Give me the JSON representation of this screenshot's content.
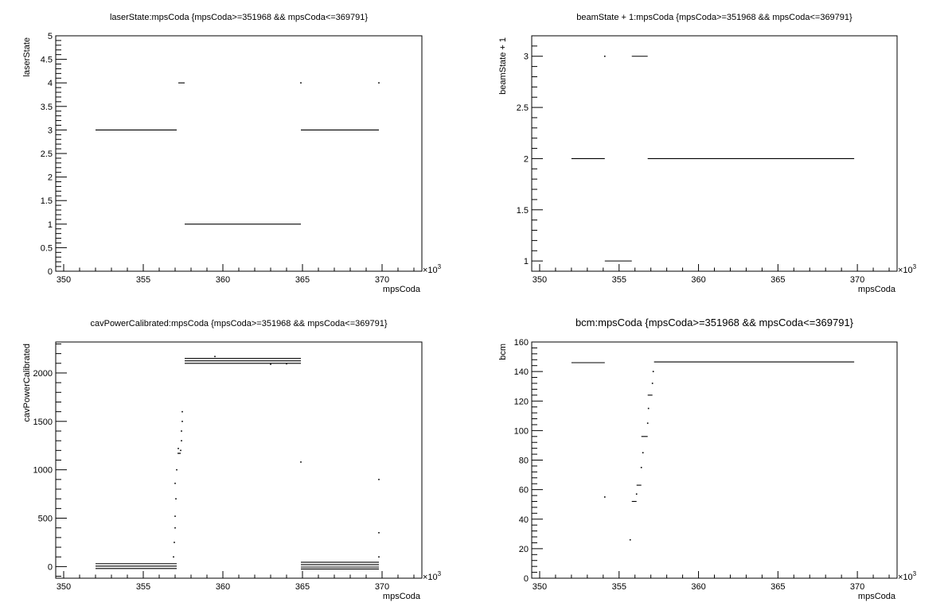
{
  "chart_data": [
    {
      "type": "scatter",
      "title": "laserState:mpsCoda {mpsCoda>=351968 && mpsCoda<=369791}",
      "xlabel": "mpsCoda",
      "ylabel": "laserState",
      "x_exponent": "×10",
      "x_exponent_power": "3",
      "xlim": [
        349.5,
        372.5
      ],
      "ylim": [
        0,
        5
      ],
      "xticks": [
        350,
        355,
        360,
        365,
        370
      ],
      "xtick_labels": [
        "350",
        "355",
        "360",
        "365",
        "370"
      ],
      "yticks": [
        0,
        0.5,
        1,
        1.5,
        2,
        2.5,
        3,
        3.5,
        4,
        4.5,
        5
      ],
      "ytick_labels": [
        "0",
        "0.5",
        "1",
        "1.5",
        "2",
        "2.5",
        "3",
        "3.5",
        "4",
        "4.5",
        "5"
      ],
      "grid": false,
      "segments": [
        {
          "x0": 352.0,
          "x1": 357.1,
          "y": 3
        },
        {
          "x0": 357.2,
          "x1": 357.6,
          "y": 4
        },
        {
          "x0": 357.6,
          "x1": 364.9,
          "y": 1
        },
        {
          "x0": 364.9,
          "x1": 369.8,
          "y": 3
        }
      ],
      "points": [
        {
          "x": 364.9,
          "y": 4
        },
        {
          "x": 369.8,
          "y": 4
        }
      ]
    },
    {
      "type": "scatter",
      "title": "beamState + 1:mpsCoda {mpsCoda>=351968 && mpsCoda<=369791}",
      "xlabel": "mpsCoda",
      "ylabel": "beamState + 1",
      "x_exponent": "×10",
      "x_exponent_power": "3",
      "xlim": [
        349.5,
        372.5
      ],
      "ylim": [
        0.9,
        3.2
      ],
      "xticks": [
        350,
        355,
        360,
        365,
        370
      ],
      "xtick_labels": [
        "350",
        "355",
        "360",
        "365",
        "370"
      ],
      "yticks": [
        1,
        1.5,
        2,
        2.5,
        3
      ],
      "ytick_labels": [
        "1",
        "1.5",
        "2",
        "2.5",
        "3"
      ],
      "grid": false,
      "segments": [
        {
          "x0": 352.0,
          "x1": 354.1,
          "y": 2
        },
        {
          "x0": 354.1,
          "x1": 355.8,
          "y": 1
        },
        {
          "x0": 355.8,
          "x1": 356.8,
          "y": 3
        },
        {
          "x0": 356.8,
          "x1": 369.8,
          "y": 2
        }
      ],
      "points": [
        {
          "x": 354.1,
          "y": 3
        }
      ]
    },
    {
      "type": "scatter",
      "title": "cavPowerCalibrated:mpsCoda {mpsCoda>=351968 && mpsCoda<=369791}",
      "xlabel": "mpsCoda",
      "ylabel": "cavPowerCalibrated",
      "x_exponent": "×10",
      "x_exponent_power": "3",
      "xlim": [
        349.5,
        372.5
      ],
      "ylim": [
        -120,
        2320
      ],
      "xticks": [
        350,
        355,
        360,
        365,
        370
      ],
      "xtick_labels": [
        "350",
        "355",
        "360",
        "365",
        "370"
      ],
      "yticks": [
        0,
        500,
        1000,
        1500,
        2000
      ],
      "ytick_labels": [
        "0",
        "500",
        "1000",
        "1500",
        "2000"
      ],
      "grid": false,
      "segments": [
        {
          "x0": 352.0,
          "x1": 357.1,
          "y": 30
        },
        {
          "x0": 352.0,
          "x1": 357.1,
          "y": 5
        },
        {
          "x0": 352.0,
          "x1": 357.1,
          "y": -20
        },
        {
          "x0": 357.6,
          "x1": 364.9,
          "y": 2150
        },
        {
          "x0": 357.6,
          "x1": 364.9,
          "y": 2125
        },
        {
          "x0": 357.6,
          "x1": 364.9,
          "y": 2100
        },
        {
          "x0": 364.9,
          "x1": 369.8,
          "y": 45
        },
        {
          "x0": 364.9,
          "x1": 369.8,
          "y": 20
        },
        {
          "x0": 364.9,
          "x1": 369.8,
          "y": -5
        },
        {
          "x0": 364.9,
          "x1": 369.8,
          "y": -25
        }
      ],
      "points": [
        {
          "x": 356.9,
          "y": 100
        },
        {
          "x": 356.95,
          "y": 250
        },
        {
          "x": 357.0,
          "y": 400
        },
        {
          "x": 357.0,
          "y": 520
        },
        {
          "x": 357.05,
          "y": 700
        },
        {
          "x": 357.0,
          "y": 860
        },
        {
          "x": 357.1,
          "y": 1000
        },
        {
          "x": 357.2,
          "y": 1170
        },
        {
          "x": 357.2,
          "y": 1220
        },
        {
          "x": 357.3,
          "y": 1170
        },
        {
          "x": 357.35,
          "y": 1200
        },
        {
          "x": 357.4,
          "y": 1300
        },
        {
          "x": 357.4,
          "y": 1400
        },
        {
          "x": 357.45,
          "y": 1500
        },
        {
          "x": 357.45,
          "y": 1600
        },
        {
          "x": 359.5,
          "y": 2170
        },
        {
          "x": 364.9,
          "y": 1080
        },
        {
          "x": 369.8,
          "y": 900
        },
        {
          "x": 369.8,
          "y": 350
        },
        {
          "x": 369.8,
          "y": 100
        },
        {
          "x": 363.0,
          "y": 2090
        },
        {
          "x": 364.0,
          "y": 2095
        }
      ]
    },
    {
      "type": "scatter",
      "title": "bcm:mpsCoda {mpsCoda>=351968 && mpsCoda<=369791}",
      "xlabel": "mpsCoda",
      "ylabel": "bcm",
      "x_exponent": "×10",
      "x_exponent_power": "3",
      "xlim": [
        349.5,
        372.5
      ],
      "ylim": [
        0,
        160
      ],
      "xticks": [
        350,
        355,
        360,
        365,
        370
      ],
      "xtick_labels": [
        "350",
        "355",
        "360",
        "365",
        "370"
      ],
      "yticks": [
        0,
        20,
        40,
        60,
        80,
        100,
        120,
        140,
        160
      ],
      "ytick_labels": [
        "0",
        "20",
        "40",
        "60",
        "80",
        "100",
        "120",
        "140",
        "160"
      ],
      "grid": false,
      "segments": [
        {
          "x0": 352.0,
          "x1": 354.1,
          "y": 146
        },
        {
          "x0": 355.8,
          "x1": 356.1,
          "y": 52
        },
        {
          "x0": 356.1,
          "x1": 356.4,
          "y": 63
        },
        {
          "x0": 356.4,
          "x1": 356.8,
          "y": 96
        },
        {
          "x0": 356.8,
          "x1": 357.1,
          "y": 124
        },
        {
          "x0": 357.2,
          "x1": 369.8,
          "y": 146.5
        }
      ],
      "points": [
        {
          "x": 354.1,
          "y": 55
        },
        {
          "x": 355.7,
          "y": 26
        },
        {
          "x": 356.1,
          "y": 57
        },
        {
          "x": 356.4,
          "y": 75
        },
        {
          "x": 356.5,
          "y": 85
        },
        {
          "x": 356.8,
          "y": 105
        },
        {
          "x": 356.85,
          "y": 115
        },
        {
          "x": 357.1,
          "y": 132
        },
        {
          "x": 357.15,
          "y": 140
        }
      ]
    }
  ]
}
